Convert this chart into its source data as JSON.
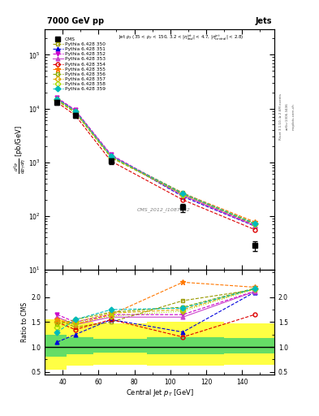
{
  "title_left": "7000 GeV pp",
  "title_right": "Jets",
  "watermark": "CMS_2012_I1087342",
  "xlabel": "Central Jet p_{T} [GeV]",
  "xlim": [
    30,
    158
  ],
  "ylim_main": [
    10,
    300000.0
  ],
  "ylim_ratio": [
    0.45,
    2.55
  ],
  "pt_values": [
    37,
    47,
    67,
    107,
    147
  ],
  "cms_values": [
    13000,
    7500,
    1050,
    145,
    28
  ],
  "cms_errors_lo": [
    1200,
    700,
    120,
    25,
    6
  ],
  "cms_errors_hi": [
    1200,
    700,
    120,
    25,
    6
  ],
  "series": [
    {
      "label": "Pythia 6.428 350",
      "color": "#999900",
      "linestyle": "--",
      "marker": "s",
      "markerfill": "none",
      "values": [
        15000,
        9000,
        1300,
        270,
        68
      ],
      "ratio": [
        1.55,
        1.4,
        1.5,
        1.93,
        2.15
      ]
    },
    {
      "label": "Pythia 6.428 351",
      "color": "#0000dd",
      "linestyle": "--",
      "marker": "^",
      "markerfill": "full",
      "values": [
        15500,
        9200,
        1350,
        230,
        65
      ],
      "ratio": [
        1.1,
        1.25,
        1.55,
        1.3,
        2.1
      ]
    },
    {
      "label": "Pythia 6.428 352",
      "color": "#cc00cc",
      "linestyle": "--",
      "marker": "v",
      "markerfill": "full",
      "values": [
        15800,
        9400,
        1380,
        250,
        67
      ],
      "ratio": [
        1.65,
        1.5,
        1.65,
        1.65,
        2.12
      ]
    },
    {
      "label": "Pythia 6.428 353",
      "color": "#cc44cc",
      "linestyle": "-",
      "marker": "^",
      "markerfill": "full",
      "values": [
        15200,
        9100,
        1340,
        240,
        66
      ],
      "ratio": [
        1.6,
        1.45,
        1.6,
        1.6,
        2.11
      ]
    },
    {
      "label": "Pythia 6.428 354",
      "color": "#dd0000",
      "linestyle": "--",
      "marker": "o",
      "markerfill": "none",
      "values": [
        13000,
        7500,
        1050,
        200,
        56
      ],
      "ratio": [
        1.5,
        1.35,
        1.55,
        1.2,
        1.65
      ]
    },
    {
      "label": "Pythia 6.428 355",
      "color": "#ff7700",
      "linestyle": "--",
      "marker": "*",
      "markerfill": "full",
      "values": [
        14500,
        8700,
        1260,
        265,
        78
      ],
      "ratio": [
        1.55,
        1.45,
        1.65,
        2.3,
        2.2
      ]
    },
    {
      "label": "Pythia 6.428 356",
      "color": "#88aa00",
      "linestyle": "--",
      "marker": "s",
      "markerfill": "none",
      "values": [
        14000,
        8400,
        1220,
        255,
        74
      ],
      "ratio": [
        1.45,
        1.55,
        1.7,
        1.8,
        2.18
      ]
    },
    {
      "label": "Pythia 6.428 357",
      "color": "#ddaa00",
      "linestyle": "--",
      "marker": "D",
      "markerfill": "none",
      "values": [
        14800,
        8900,
        1280,
        258,
        72
      ],
      "ratio": [
        1.5,
        1.5,
        1.68,
        1.75,
        2.17
      ]
    },
    {
      "label": "Pythia 6.428 358",
      "color": "#aadd00",
      "linestyle": ":",
      "marker": "D",
      "markerfill": "none",
      "values": [
        14200,
        8600,
        1240,
        250,
        71
      ],
      "ratio": [
        1.4,
        1.48,
        1.62,
        1.72,
        2.16
      ]
    },
    {
      "label": "Pythia 6.428 359",
      "color": "#00bbbb",
      "linestyle": "--",
      "marker": "D",
      "markerfill": "full",
      "values": [
        15000,
        9000,
        1300,
        262,
        72
      ],
      "ratio": [
        1.3,
        1.55,
        1.75,
        1.78,
        2.17
      ]
    }
  ],
  "band_edges": [
    30,
    42,
    57,
    87,
    130,
    158
  ],
  "unc_yellow_lo": [
    0.55,
    0.62,
    0.65,
    0.63,
    0.64
  ],
  "unc_yellow_hi": [
    1.55,
    1.5,
    1.47,
    1.5,
    1.48
  ],
  "unc_green_lo": [
    0.8,
    0.85,
    0.88,
    0.86,
    0.87
  ],
  "unc_green_hi": [
    1.25,
    1.2,
    1.17,
    1.2,
    1.18
  ]
}
